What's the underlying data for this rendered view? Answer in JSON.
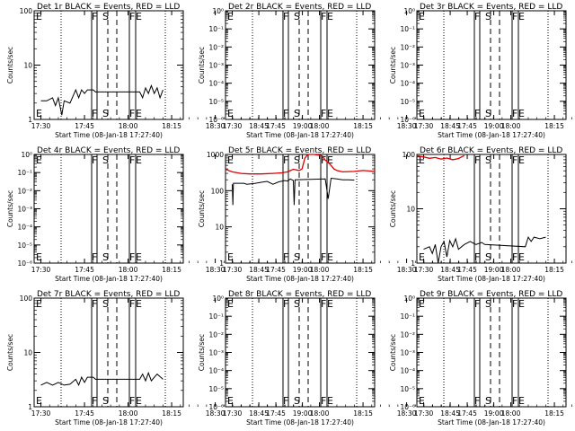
{
  "x_tick_labels": [
    "17:30",
    "17:45",
    "18:00",
    "18:15",
    "18:30",
    "18:45",
    "19:00"
  ],
  "x_axis_title": "Start Time (08-Jan-18 17:27:40)",
  "y_axis_title": "Counts/sec",
  "marker_labels": {
    "E_start": "E",
    "F": "F",
    "S": "S",
    "F_end": "F",
    "E_end": "E"
  },
  "colors": {
    "events": "#000000",
    "lld": "#dd0000"
  },
  "chart_data": [
    {
      "type": "line",
      "title": "Det 1r BLACK = Events, RED = LLD",
      "y_scale": "log",
      "ylim": [
        1,
        100
      ],
      "y_tick_labels": [
        "1",
        "10",
        "100"
      ],
      "series": [
        {
          "name": "Events",
          "color": "#000000",
          "points": [
            [
              0.0,
              2.2
            ],
            [
              2.0,
              2.2
            ],
            [
              4.0,
              2.5
            ],
            [
              5.0,
              1.8
            ],
            [
              6.0,
              2.5
            ],
            [
              7.2,
              1.2
            ],
            [
              8.0,
              2.2
            ],
            [
              10.0,
              2.0
            ],
            [
              12.0,
              3.5
            ],
            [
              13.0,
              2.5
            ],
            [
              14.0,
              3.5
            ],
            [
              15.0,
              3.0
            ],
            [
              16.0,
              3.5
            ],
            [
              18.0,
              3.5
            ],
            [
              18.8,
              3.2
            ],
            [
              34.0,
              3.2
            ],
            [
              35.0,
              2.5
            ],
            [
              36.0,
              3.8
            ],
            [
              37.0,
              3.0
            ],
            [
              38.0,
              4.2
            ],
            [
              39.0,
              3.0
            ],
            [
              40.0,
              3.8
            ],
            [
              41.0,
              2.5
            ],
            [
              42.0,
              3.5
            ]
          ]
        }
      ]
    },
    {
      "type": "line",
      "title": "Det 2r BLACK = Events, RED = LLD",
      "y_scale": "log",
      "ylim": [
        1e-06,
        1
      ],
      "y_tick_labels": [
        "10⁻⁶",
        "10⁻⁵",
        "10⁻⁴",
        "10⁻³",
        "10⁻²",
        "10⁻¹",
        "10⁰"
      ],
      "series": []
    },
    {
      "type": "line",
      "title": "Det 3r BLACK = Events, RED = LLD",
      "y_scale": "log",
      "ylim": [
        1e-06,
        1
      ],
      "y_tick_labels": [
        "10⁻⁶",
        "10⁻⁵",
        "10⁻⁴",
        "10⁻³",
        "10⁻²",
        "10⁻¹",
        "10⁰"
      ],
      "series": []
    },
    {
      "type": "line",
      "title": "Det 4r BLACK = Events, RED = LLD",
      "y_scale": "log",
      "ylim": [
        1e-06,
        1
      ],
      "y_tick_labels": [
        "10⁻⁶",
        "10⁻⁵",
        "10⁻⁴",
        "10⁻³",
        "10⁻²",
        "10⁻¹",
        "10⁰"
      ],
      "series": []
    },
    {
      "type": "line",
      "title": "Det 5r BLACK = Events, RED = LLD",
      "y_scale": "log",
      "ylim": [
        1,
        1000
      ],
      "y_tick_labels": [
        "1",
        "10",
        "100",
        "1000"
      ],
      "series": [
        {
          "name": "LLD",
          "color": "#dd0000",
          "points": [
            [
              -2.3,
              390
            ],
            [
              0.0,
              330
            ],
            [
              3.0,
              300
            ],
            [
              6.0,
              290
            ],
            [
              10.0,
              290
            ],
            [
              14.0,
              300
            ],
            [
              17.0,
              310
            ],
            [
              19.0,
              330
            ],
            [
              21.0,
              390
            ],
            [
              23.0,
              360
            ],
            [
              24.0,
              400
            ],
            [
              25.0,
              800
            ],
            [
              26.0,
              1000
            ],
            [
              28.0,
              1000
            ],
            [
              30.0,
              950
            ],
            [
              31.0,
              900
            ],
            [
              32.0,
              700
            ],
            [
              33.5,
              550
            ],
            [
              35.0,
              400
            ],
            [
              36.0,
              360
            ],
            [
              38.0,
              330
            ],
            [
              42.0,
              340
            ],
            [
              45.0,
              360
            ],
            [
              49.0,
              340
            ]
          ]
        },
        {
          "name": "Events",
          "color": "#000000",
          "points": [
            [
              0.0,
              150
            ],
            [
              0.2,
              40
            ],
            [
              0.4,
              160
            ],
            [
              4.0,
              160
            ],
            [
              5.0,
              150
            ],
            [
              8.0,
              160
            ],
            [
              10.0,
              170
            ],
            [
              12.0,
              180
            ],
            [
              14.0,
              150
            ],
            [
              16.0,
              175
            ],
            [
              18.0,
              190
            ],
            [
              19.0,
              185
            ],
            [
              20.0,
              210
            ],
            [
              21.0,
              190
            ],
            [
              21.3,
              40
            ],
            [
              21.6,
              200
            ],
            [
              32.0,
              210
            ],
            [
              33.0,
              60
            ],
            [
              34.0,
              220
            ],
            [
              36.0,
              210
            ],
            [
              38.0,
              200
            ],
            [
              40.0,
              200
            ],
            [
              42.0,
              195
            ]
          ]
        }
      ]
    },
    {
      "type": "line",
      "title": "Det 6r BLACK = Events, RED = LLD",
      "y_scale": "log",
      "ylim": [
        1,
        100
      ],
      "y_tick_labels": [
        "1",
        "10",
        "100"
      ],
      "series": [
        {
          "name": "LLD",
          "color": "#dd0000",
          "points": [
            [
              -2.5,
              95
            ],
            [
              0.0,
              90
            ],
            [
              2.0,
              85
            ],
            [
              4.0,
              88
            ],
            [
              6.0,
              82
            ],
            [
              8.0,
              86
            ],
            [
              10.0,
              80
            ],
            [
              12.0,
              84
            ],
            [
              13.0,
              90
            ],
            [
              14.0,
              95
            ]
          ]
        },
        {
          "name": "Events",
          "color": "#000000",
          "points": [
            [
              0.0,
              1.8
            ],
            [
              2.0,
              2.0
            ],
            [
              3.0,
              1.5
            ],
            [
              4.0,
              2.2
            ],
            [
              5.0,
              1.0
            ],
            [
              6.0,
              2.0
            ],
            [
              7.0,
              2.5
            ],
            [
              8.0,
              1.3
            ],
            [
              9.0,
              2.6
            ],
            [
              10.0,
              2.0
            ],
            [
              11.0,
              2.8
            ],
            [
              12.0,
              1.8
            ],
            [
              14.0,
              2.2
            ],
            [
              16.0,
              2.5
            ],
            [
              18.0,
              2.2
            ],
            [
              20.0,
              2.4
            ],
            [
              21.0,
              2.2
            ],
            [
              35.0,
              2.0
            ],
            [
              36.0,
              3.0
            ],
            [
              37.0,
              2.5
            ],
            [
              38.0,
              3.0
            ],
            [
              40.0,
              2.8
            ],
            [
              42.0,
              3.0
            ]
          ]
        }
      ]
    },
    {
      "type": "line",
      "title": "Det 7r BLACK = Events, RED = LLD",
      "y_scale": "log",
      "ylim": [
        1,
        100
      ],
      "y_tick_labels": [
        "1",
        "10",
        "100"
      ],
      "series": [
        {
          "name": "Events",
          "color": "#000000",
          "points": [
            [
              0.0,
              2.5
            ],
            [
              2.0,
              2.8
            ],
            [
              4.0,
              2.5
            ],
            [
              6.0,
              2.8
            ],
            [
              8.0,
              2.5
            ],
            [
              10.0,
              2.6
            ],
            [
              12.0,
              3.2
            ],
            [
              13.0,
              2.5
            ],
            [
              14.0,
              3.5
            ],
            [
              15.0,
              2.8
            ],
            [
              16.0,
              3.5
            ],
            [
              18.0,
              3.5
            ],
            [
              18.8,
              3.2
            ],
            [
              34.0,
              3.2
            ],
            [
              35.0,
              4.0
            ],
            [
              36.0,
              3.0
            ],
            [
              37.0,
              4.2
            ],
            [
              38.0,
              3.0
            ],
            [
              40.0,
              4.0
            ],
            [
              42.0,
              3.2
            ]
          ]
        }
      ]
    },
    {
      "type": "line",
      "title": "Det 8r BLACK = Events, RED = LLD",
      "y_scale": "log",
      "ylim": [
        1e-06,
        1
      ],
      "y_tick_labels": [
        "10⁻⁶",
        "10⁻⁵",
        "10⁻⁴",
        "10⁻³",
        "10⁻²",
        "10⁻¹",
        "10⁰"
      ],
      "series": []
    },
    {
      "type": "line",
      "title": "Det 9r BLACK = Events, RED = LLD",
      "y_scale": "log",
      "ylim": [
        1e-06,
        1
      ],
      "y_tick_labels": [
        "10⁻⁶",
        "10⁻⁵",
        "10⁻⁴",
        "10⁻³",
        "10⁻²",
        "10⁻¹",
        "10⁰"
      ],
      "series": []
    }
  ]
}
